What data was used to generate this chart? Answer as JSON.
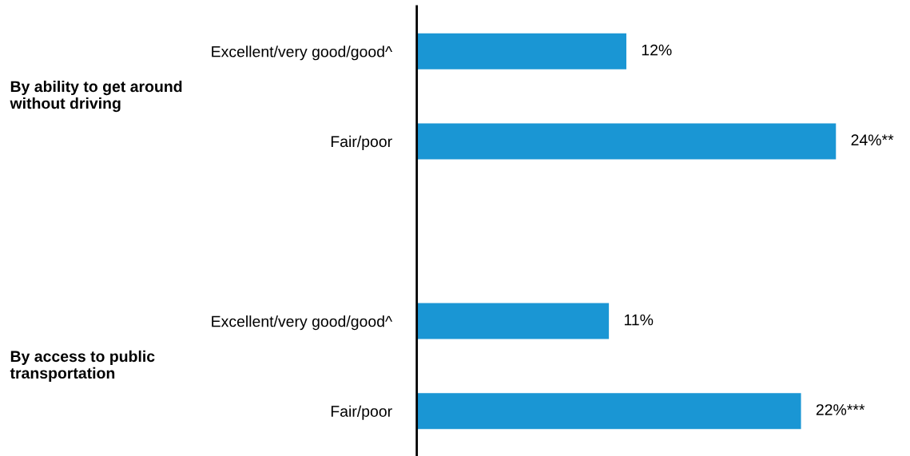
{
  "chart_data": {
    "type": "bar",
    "orientation": "horizontal",
    "categories": [
      "Excellent/very good/good^",
      "Fair/poor",
      null,
      "Excellent/very good/good^",
      "Fair/poor"
    ],
    "values": [
      12,
      24,
      null,
      11,
      22
    ],
    "value_labels": [
      "12%",
      "24%**",
      null,
      "11%",
      "22%***"
    ],
    "color": "#1a96d4",
    "annotations": [
      "By ability to get around without driving",
      "By access to public transportation"
    ],
    "grid": false,
    "legend": false,
    "tick_labels": "y"
  }
}
